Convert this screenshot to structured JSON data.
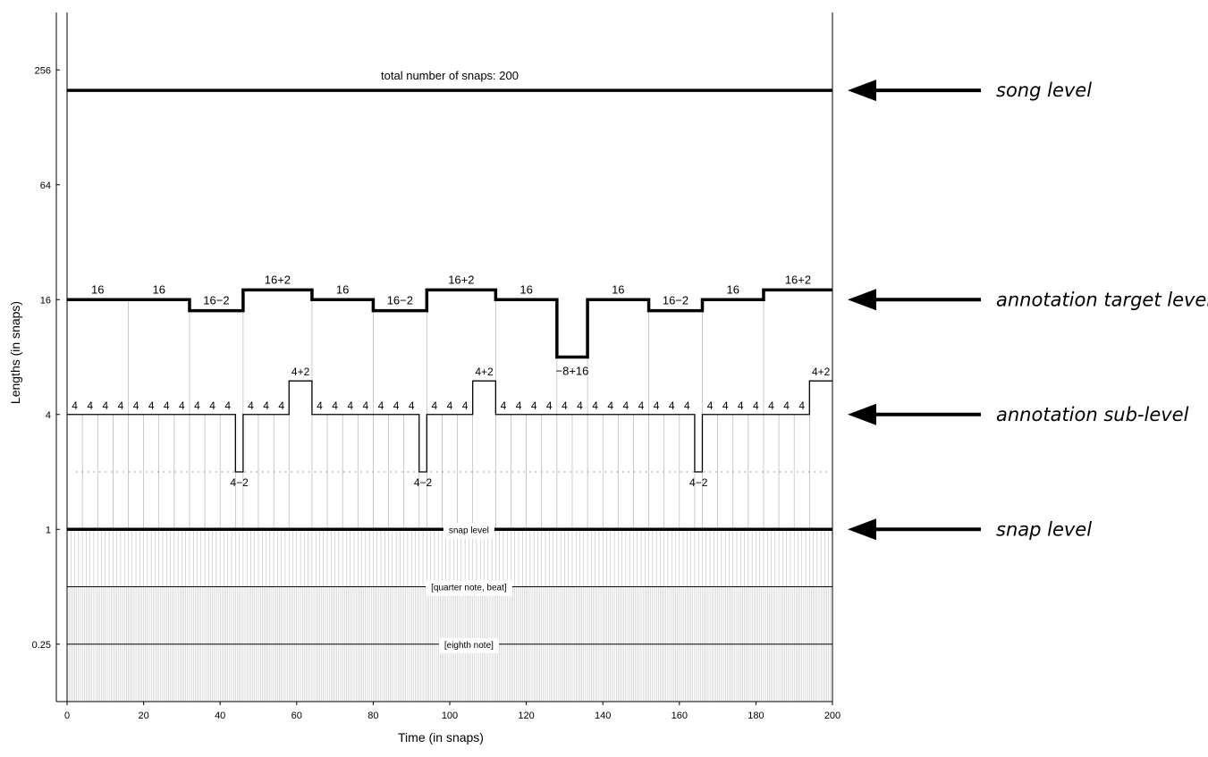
{
  "chart_data": {
    "type": "line",
    "xlabel": "Time (in snaps)",
    "ylabel": "Lengths (in snaps)",
    "xlim": [
      0,
      200
    ],
    "y_scale": "log2",
    "ylim": [
      0.125,
      512
    ],
    "x_ticks": [
      0,
      20,
      40,
      60,
      80,
      100,
      120,
      140,
      160,
      180,
      200
    ],
    "x_tick_labels": [
      "0",
      "20",
      "40",
      "60",
      "80",
      "100",
      "120",
      "140",
      "160",
      "180",
      "200"
    ],
    "y_ticks": [
      0.25,
      1,
      4,
      16,
      64,
      256
    ],
    "y_tick_labels": [
      "0.25",
      "1",
      "4",
      "16",
      "64",
      "256"
    ],
    "grid": false,
    "song_level": {
      "label": "total number of snaps: 200",
      "x": [
        0,
        200
      ],
      "value": 200
    },
    "annotation_target_level": {
      "segments": [
        {
          "start": 0,
          "length": 16,
          "label": "16"
        },
        {
          "start": 16,
          "length": 16,
          "label": "16"
        },
        {
          "start": 32,
          "length": 14,
          "label": "16−2"
        },
        {
          "start": 46,
          "length": 18,
          "label": "16+2"
        },
        {
          "start": 64,
          "length": 16,
          "label": "16"
        },
        {
          "start": 80,
          "length": 14,
          "label": "16−2"
        },
        {
          "start": 94,
          "length": 18,
          "label": "16+2"
        },
        {
          "start": 112,
          "length": 16,
          "label": "16"
        },
        {
          "start": 128,
          "length": 8,
          "label": "−8+16"
        },
        {
          "start": 136,
          "length": 16,
          "label": "16"
        },
        {
          "start": 152,
          "length": 14,
          "label": "16−2"
        },
        {
          "start": 166,
          "length": 16,
          "label": "16"
        },
        {
          "start": 182,
          "length": 18,
          "label": "16+2"
        }
      ]
    },
    "annotation_sub_level": {
      "segments": [
        {
          "start": 0,
          "length": 4,
          "label": "4"
        },
        {
          "start": 4,
          "length": 4,
          "label": "4"
        },
        {
          "start": 8,
          "length": 4,
          "label": "4"
        },
        {
          "start": 12,
          "length": 4,
          "label": "4"
        },
        {
          "start": 16,
          "length": 4,
          "label": "4"
        },
        {
          "start": 20,
          "length": 4,
          "label": "4"
        },
        {
          "start": 24,
          "length": 4,
          "label": "4"
        },
        {
          "start": 28,
          "length": 4,
          "label": "4"
        },
        {
          "start": 32,
          "length": 4,
          "label": "4"
        },
        {
          "start": 36,
          "length": 4,
          "label": "4"
        },
        {
          "start": 40,
          "length": 4,
          "label": "4"
        },
        {
          "start": 44,
          "length": 2,
          "label": "4−2"
        },
        {
          "start": 46,
          "length": 4,
          "label": "4"
        },
        {
          "start": 50,
          "length": 4,
          "label": "4"
        },
        {
          "start": 54,
          "length": 4,
          "label": "4"
        },
        {
          "start": 58,
          "length": 6,
          "label": "4+2"
        },
        {
          "start": 64,
          "length": 4,
          "label": "4"
        },
        {
          "start": 68,
          "length": 4,
          "label": "4"
        },
        {
          "start": 72,
          "length": 4,
          "label": "4"
        },
        {
          "start": 76,
          "length": 4,
          "label": "4"
        },
        {
          "start": 80,
          "length": 4,
          "label": "4"
        },
        {
          "start": 84,
          "length": 4,
          "label": "4"
        },
        {
          "start": 88,
          "length": 4,
          "label": "4"
        },
        {
          "start": 92,
          "length": 2,
          "label": "4−2"
        },
        {
          "start": 94,
          "length": 4,
          "label": "4"
        },
        {
          "start": 98,
          "length": 4,
          "label": "4"
        },
        {
          "start": 102,
          "length": 4,
          "label": "4"
        },
        {
          "start": 106,
          "length": 6,
          "label": "4+2"
        },
        {
          "start": 112,
          "length": 4,
          "label": "4"
        },
        {
          "start": 116,
          "length": 4,
          "label": "4"
        },
        {
          "start": 120,
          "length": 4,
          "label": "4"
        },
        {
          "start": 124,
          "length": 4,
          "label": "4"
        },
        {
          "start": 128,
          "length": 4,
          "label": "4"
        },
        {
          "start": 132,
          "length": 4,
          "label": "4"
        },
        {
          "start": 136,
          "length": 4,
          "label": "4"
        },
        {
          "start": 140,
          "length": 4,
          "label": "4"
        },
        {
          "start": 144,
          "length": 4,
          "label": "4"
        },
        {
          "start": 148,
          "length": 4,
          "label": "4"
        },
        {
          "start": 152,
          "length": 4,
          "label": "4"
        },
        {
          "start": 156,
          "length": 4,
          "label": "4"
        },
        {
          "start": 160,
          "length": 4,
          "label": "4"
        },
        {
          "start": 164,
          "length": 2,
          "label": "4−2"
        },
        {
          "start": 166,
          "length": 4,
          "label": "4"
        },
        {
          "start": 170,
          "length": 4,
          "label": "4"
        },
        {
          "start": 174,
          "length": 4,
          "label": "4"
        },
        {
          "start": 178,
          "length": 4,
          "label": "4"
        },
        {
          "start": 182,
          "length": 4,
          "label": "4"
        },
        {
          "start": 186,
          "length": 4,
          "label": "4"
        },
        {
          "start": 190,
          "length": 4,
          "label": "4"
        },
        {
          "start": 194,
          "length": 6,
          "label": "4+2"
        }
      ]
    },
    "snap_level": {
      "label": "snap level",
      "value": 1,
      "x": [
        0,
        200
      ]
    },
    "quarter_note_level": {
      "label": "[quarter note, beat]",
      "value": 0.5,
      "x": [
        0,
        200
      ]
    },
    "eighth_note_level": {
      "label": "[eighth note]",
      "value": 0.25,
      "x": [
        0,
        200
      ]
    },
    "reference_value_2": {
      "value": 2,
      "style": "dotted"
    },
    "level_annotations": [
      {
        "label": "song level",
        "value": 200
      },
      {
        "label": "annotation target level",
        "value": 16
      },
      {
        "label": "annotation sub-level",
        "value": 4
      },
      {
        "label": "snap level",
        "value": 1
      }
    ],
    "colors": {
      "line": "#000000",
      "grid_lines": "#b4b4b4",
      "background": "#ffffff"
    }
  }
}
